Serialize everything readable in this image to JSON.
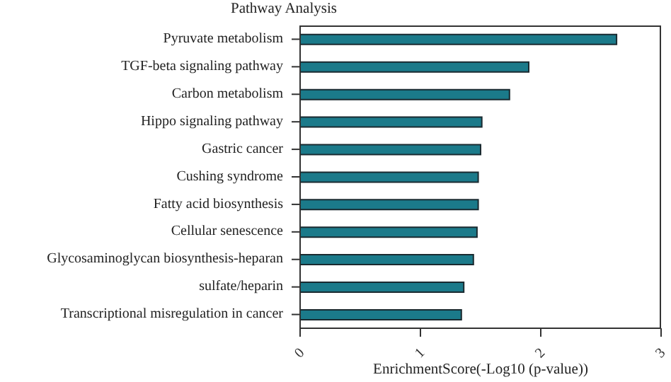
{
  "chart_data": {
    "type": "bar",
    "orientation": "horizontal",
    "title": "Pathway Analysis",
    "xlabel": "EnrichmentScore(-Log10 (p-value))",
    "categories": [
      "Pyruvate metabolism",
      "TGF-beta signaling pathway",
      "Carbon metabolism",
      "Hippo signaling pathway",
      "Gastric cancer",
      "Cushing syndrome",
      "Fatty acid biosynthesis",
      "Cellular senescence",
      "Glycosaminoglycan biosynthesis-heparan",
      "sulfate/heparin",
      "Transcriptional misregulation in cancer"
    ],
    "values": [
      2.63,
      1.9,
      1.74,
      1.51,
      1.5,
      1.48,
      1.48,
      1.47,
      1.44,
      1.36,
      1.34
    ],
    "color": "#1b7a8a",
    "xlim": [
      0,
      3
    ],
    "xticks": [
      0,
      1,
      2,
      3
    ]
  }
}
